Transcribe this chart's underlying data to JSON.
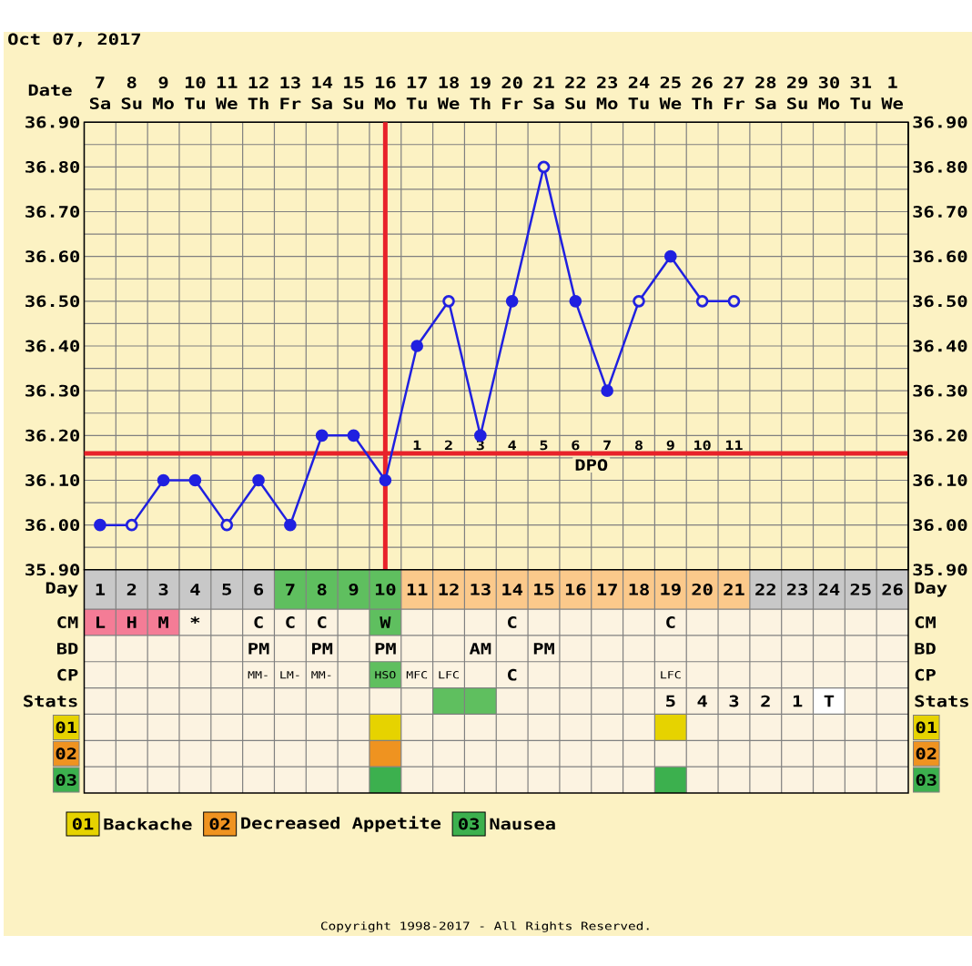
{
  "chart_data": [
    {
      "type": "line",
      "title": "Oct 07, 2017",
      "xlabel": "Date",
      "categories": [
        "7 Sa",
        "8 Su",
        "9 Mo",
        "10 Tu",
        "11 We",
        "12 Th",
        "13 Fr",
        "14 Sa",
        "15 Su",
        "16 Mo",
        "17 Tu",
        "18 We",
        "19 Th",
        "20 Fr",
        "21 Sa",
        "22 Su",
        "23 Mo",
        "24 Tu",
        "25 We",
        "26 Th",
        "27 Fr",
        "28 Sa",
        "29 Su",
        "30 Mo",
        "31 Tu",
        "1 We"
      ],
      "series": [
        {
          "type": "line",
          "color": "#2020e0",
          "marker": "circle",
          "values": [
            36.0,
            36.0,
            36.1,
            36.1,
            36.0,
            36.1,
            36.0,
            36.2,
            36.2,
            36.1,
            36.4,
            36.5,
            36.2,
            36.5,
            36.8,
            36.5,
            36.3,
            36.5,
            36.6,
            36.5,
            36.5,
            null,
            null,
            null,
            null,
            null
          ]
        },
        {
          "type": "scatter",
          "color": "#fcf2c3",
          "marker": "circle",
          "values": [
            null,
            36.0,
            null,
            null,
            36.0,
            null,
            null,
            null,
            null,
            null,
            null,
            36.5,
            null,
            null,
            36.8,
            null,
            null,
            36.5,
            null,
            36.5,
            36.5,
            null,
            null,
            null,
            null,
            null
          ]
        }
      ],
      "ylim": [
        35.9,
        36.9
      ],
      "yticks": [
        {
          "value": 35.9,
          "label": "35.90"
        },
        {
          "value": 35.95,
          "label": null
        },
        {
          "value": 36.0,
          "label": "36.00"
        },
        {
          "value": 36.05,
          "label": null
        },
        {
          "value": 36.1,
          "label": "36.10"
        },
        {
          "value": 36.15,
          "label": null
        },
        {
          "value": 36.2,
          "label": "36.20"
        },
        {
          "value": 36.25,
          "label": null
        },
        {
          "value": 36.3,
          "label": "36.30"
        },
        {
          "value": 36.35,
          "label": null
        },
        {
          "value": 36.4,
          "label": "36.40"
        },
        {
          "value": 36.45,
          "label": null
        },
        {
          "value": 36.5,
          "label": "36.50"
        },
        {
          "value": 36.55,
          "label": null
        },
        {
          "value": 36.6,
          "label": "36.60"
        },
        {
          "value": 36.65,
          "label": null
        },
        {
          "value": 36.7,
          "label": "36.70"
        },
        {
          "value": 36.75,
          "label": null
        },
        {
          "value": 36.8,
          "label": "36.80"
        },
        {
          "value": 36.85,
          "label": null
        },
        {
          "value": 36.9,
          "label": "36.90"
        }
      ],
      "y2lim": [
        35.9,
        36.9
      ],
      "y2ticks": [
        {
          "value": 35.9,
          "label": "35.90"
        },
        {
          "value": 36.0,
          "label": "36.00"
        },
        {
          "value": 36.1,
          "label": "36.10"
        },
        {
          "value": 36.2,
          "label": "36.20"
        },
        {
          "value": 36.3,
          "label": "36.30"
        },
        {
          "value": 36.4,
          "label": "36.40"
        },
        {
          "value": 36.5,
          "label": "36.50"
        },
        {
          "value": 36.6,
          "label": "36.60"
        },
        {
          "value": 36.7,
          "label": "36.70"
        },
        {
          "value": 36.8,
          "label": "36.80"
        },
        {
          "value": 36.9,
          "label": "36.90"
        }
      ],
      "grid": true,
      "ref_lines": [
        {
          "axis": "x",
          "value": "16 Mo",
          "color": "#e8222a"
        },
        {
          "axis": "y",
          "value": 36.16,
          "color": "#e8222a"
        }
      ],
      "annotations": [
        "1",
        "2",
        "3",
        "4",
        "5",
        "6",
        "7",
        "8",
        "9",
        "10",
        "11",
        "DPO"
      ]
    },
    {
      "type": "heatmap",
      "categories": [
        null,
        null,
        null,
        null,
        null,
        null,
        null,
        null,
        null,
        null,
        null,
        null,
        null,
        null,
        null,
        null,
        null,
        null,
        null,
        null,
        null,
        null,
        null,
        null,
        null,
        null
      ],
      "y_categories": [
        "Day",
        "CM",
        "BD",
        "CP",
        "Stats",
        "01",
        "02",
        "03"
      ],
      "y2_categories": [
        "Day",
        "CM",
        "BD",
        "CP",
        "Stats",
        "01",
        "02",
        "03"
      ],
      "cells": [
        [
          null,
          null,
          null,
          null,
          null,
          null,
          null,
          null,
          null,
          null,
          null,
          null,
          null,
          null,
          null,
          null,
          null,
          null,
          null,
          null,
          null,
          null,
          null,
          null,
          null,
          null
        ],
        [
          null,
          null,
          null,
          null,
          null,
          null,
          null,
          null,
          null,
          null,
          null,
          null,
          null,
          null,
          null,
          null,
          null,
          null,
          null,
          null,
          null,
          null,
          null,
          null,
          null,
          null
        ],
        [
          null,
          null,
          null,
          null,
          null,
          null,
          null,
          null,
          null,
          null,
          null,
          null,
          null,
          null,
          null,
          null,
          null,
          null,
          null,
          null,
          null,
          null,
          null,
          null,
          null,
          null
        ],
        [
          null,
          null,
          null,
          null,
          null,
          null,
          null,
          null,
          null,
          null,
          null,
          null,
          null,
          null,
          null,
          null,
          null,
          null,
          null,
          null,
          null,
          null,
          null,
          null,
          null,
          null
        ],
        [
          null,
          null,
          null,
          null,
          null,
          null,
          null,
          null,
          null,
          null,
          null,
          null,
          null,
          null,
          null,
          null,
          null,
          null,
          null,
          null,
          null,
          null,
          null,
          null,
          null,
          null
        ],
        [
          null,
          null,
          null,
          null,
          null,
          null,
          null,
          null,
          null,
          null,
          null,
          null,
          null,
          null,
          null,
          null,
          null,
          null,
          null,
          null,
          null,
          null,
          null,
          null,
          null,
          null
        ],
        [
          null,
          null,
          null,
          null,
          null,
          null,
          null,
          null,
          null,
          null,
          null,
          null,
          null,
          null,
          null,
          null,
          null,
          null,
          null,
          null,
          null,
          null,
          null,
          null,
          null,
          null
        ],
        [
          null,
          null,
          null,
          null,
          null,
          null,
          null,
          null,
          null,
          null,
          null,
          null,
          null,
          null,
          null,
          null,
          null,
          null,
          null,
          null,
          null,
          null,
          null,
          null,
          null,
          null
        ]
      ],
      "cell_labels": [
        [
          "1",
          "2",
          "3",
          "4",
          "5",
          "6",
          "7",
          "8",
          "9",
          "10",
          "11",
          "12",
          "13",
          "14",
          "15",
          "16",
          "17",
          "18",
          "19",
          "20",
          "21",
          "22",
          "23",
          "24",
          "25",
          "26"
        ],
        [
          "L",
          "H",
          "M",
          "*",
          null,
          "C",
          "C",
          "C",
          null,
          "W",
          null,
          null,
          null,
          "C",
          null,
          null,
          null,
          null,
          "C",
          null,
          null,
          null,
          null,
          null,
          null,
          null
        ],
        [
          null,
          null,
          null,
          null,
          null,
          "PM",
          null,
          "PM",
          null,
          "PM",
          null,
          null,
          "AM",
          null,
          "PM",
          null,
          null,
          null,
          null,
          null,
          null,
          null,
          null,
          null,
          null,
          null
        ],
        [
          null,
          null,
          null,
          null,
          null,
          "MM-",
          "LM-",
          "MM-",
          null,
          "HSO",
          "MFC",
          "LFC",
          null,
          "C",
          null,
          null,
          null,
          null,
          "LFC",
          null,
          null,
          null,
          null,
          null,
          null,
          null
        ],
        [
          null,
          null,
          null,
          null,
          null,
          null,
          null,
          null,
          null,
          null,
          null,
          null,
          null,
          null,
          null,
          null,
          null,
          null,
          "5",
          "4",
          "3",
          "2",
          "1",
          "T",
          null,
          null
        ],
        [
          null,
          null,
          null,
          null,
          null,
          null,
          null,
          null,
          null,
          null,
          null,
          null,
          null,
          null,
          null,
          null,
          null,
          null,
          null,
          null,
          null,
          null,
          null,
          null,
          null,
          null
        ],
        [
          null,
          null,
          null,
          null,
          null,
          null,
          null,
          null,
          null,
          null,
          null,
          null,
          null,
          null,
          null,
          null,
          null,
          null,
          null,
          null,
          null,
          null,
          null,
          null,
          null,
          null
        ],
        [
          null,
          null,
          null,
          null,
          null,
          null,
          null,
          null,
          null,
          null,
          null,
          null,
          null,
          null,
          null,
          null,
          null,
          null,
          null,
          null,
          null,
          null,
          null,
          null,
          null,
          null
        ]
      ],
      "colors": [
        [
          "#c8c8c8",
          "#c8c8c8",
          "#c8c8c8",
          "#c8c8c8",
          "#c8c8c8",
          "#c8c8c8",
          "#5fbf5f",
          "#5fbf5f",
          "#5fbf5f",
          "#5fbf5f",
          "#fbc98b",
          "#fbc98b",
          "#fbc98b",
          "#fbc98b",
          "#fbc98b",
          "#fbc98b",
          "#fbc98b",
          "#fbc98b",
          "#fbc98b",
          "#fbc98b",
          "#fbc98b",
          "#c8c8c8",
          "#c8c8c8",
          "#c8c8c8",
          "#c8c8c8",
          "#c8c8c8"
        ],
        [
          "#f47c96",
          "#f47c96",
          "#f47c96",
          null,
          null,
          null,
          null,
          null,
          null,
          "#5fbf5f",
          null,
          null,
          null,
          null,
          null,
          null,
          null,
          null,
          null,
          null,
          null,
          null,
          null,
          null,
          null,
          null
        ],
        [
          null,
          null,
          null,
          null,
          null,
          null,
          null,
          null,
          null,
          null,
          null,
          null,
          null,
          null,
          null,
          null,
          null,
          null,
          null,
          null,
          null,
          null,
          null,
          null,
          null,
          null
        ],
        [
          null,
          null,
          null,
          null,
          null,
          null,
          null,
          null,
          null,
          "#5fbf5f",
          null,
          null,
          null,
          null,
          null,
          null,
          null,
          null,
          null,
          null,
          null,
          null,
          null,
          null,
          null,
          null
        ],
        [
          null,
          null,
          null,
          null,
          null,
          null,
          null,
          null,
          null,
          null,
          null,
          "#5fbf5f",
          "#5fbf5f",
          null,
          null,
          null,
          null,
          null,
          null,
          null,
          null,
          null,
          null,
          "#ffffff",
          null,
          null
        ],
        [
          null,
          null,
          null,
          null,
          null,
          null,
          null,
          null,
          null,
          "#e6d300",
          null,
          null,
          null,
          null,
          null,
          null,
          null,
          null,
          "#e6d300",
          null,
          null,
          null,
          null,
          null,
          null,
          null
        ],
        [
          null,
          null,
          null,
          null,
          null,
          null,
          null,
          null,
          null,
          "#ef9320",
          null,
          null,
          null,
          null,
          null,
          null,
          null,
          null,
          null,
          null,
          null,
          null,
          null,
          null,
          null,
          null
        ],
        [
          null,
          null,
          null,
          null,
          null,
          null,
          null,
          null,
          null,
          "#3cb04e",
          null,
          null,
          null,
          null,
          null,
          null,
          null,
          null,
          "#3cb04e",
          null,
          null,
          null,
          null,
          null,
          null,
          null
        ]
      ],
      "annotations": [
        "Backache",
        "Decreased Appetite",
        "Nausea",
        "Copyright 1998-2017 - All Rights Reserved."
      ]
    }
  ]
}
